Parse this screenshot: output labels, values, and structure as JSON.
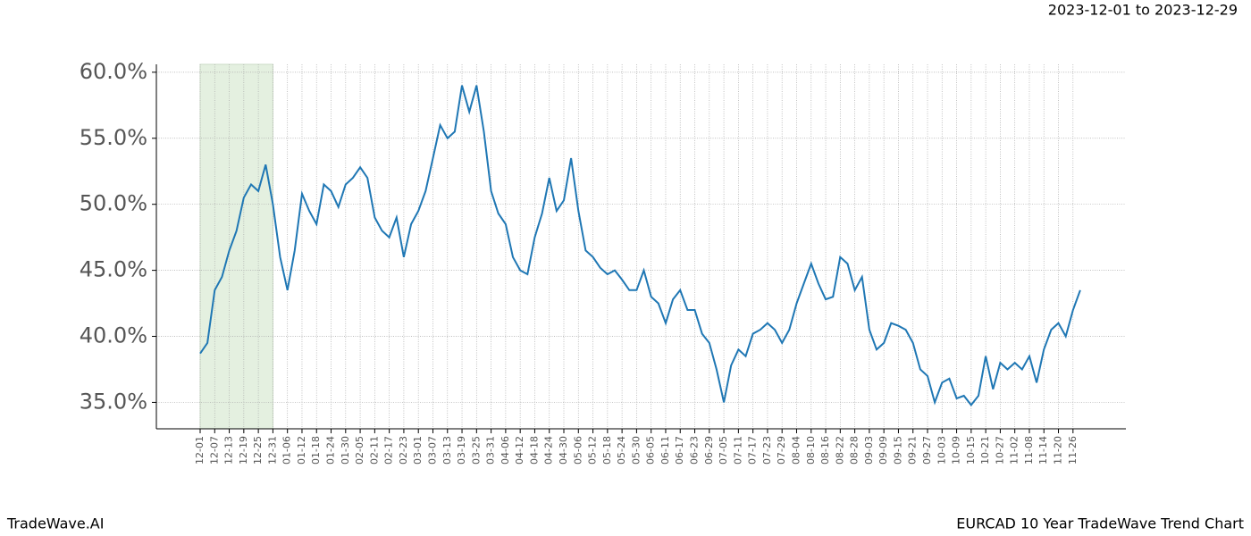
{
  "header": {
    "date_range": "2023-12-01 to 2023-12-29"
  },
  "footer": {
    "brand": "TradeWave.AI",
    "chart_name": "EURCAD 10 Year TradeWave Trend Chart"
  },
  "chart_data": {
    "type": "line",
    "color": "#1f77b4",
    "grid": true,
    "categories": [
      "12-01",
      null,
      "12-07",
      null,
      "12-13",
      null,
      "12-19",
      null,
      "12-25",
      null,
      "12-31",
      null,
      "01-06",
      null,
      "01-12",
      null,
      "01-18",
      null,
      "01-24",
      null,
      "01-30",
      null,
      "02-05",
      null,
      "02-11",
      null,
      "02-17",
      null,
      "02-23",
      null,
      "03-01",
      null,
      "03-07",
      null,
      "03-13",
      null,
      "03-19",
      null,
      "03-25",
      null,
      "03-31",
      null,
      "04-06",
      null,
      "04-12",
      null,
      "04-18",
      null,
      "04-24",
      null,
      "04-30",
      null,
      "05-06",
      null,
      "05-12",
      null,
      "05-18",
      null,
      "05-24",
      null,
      "05-30",
      null,
      "06-05",
      null,
      "06-11",
      null,
      "06-17",
      null,
      "06-23",
      null,
      "06-29",
      null,
      "07-05",
      null,
      "07-11",
      null,
      "07-17",
      null,
      "07-23",
      null,
      "07-29",
      null,
      "08-04",
      null,
      "08-10",
      null,
      "08-16",
      null,
      "08-22",
      null,
      "08-28",
      null,
      "09-03",
      null,
      "09-09",
      null,
      "09-15",
      null,
      "09-21",
      null,
      "09-27",
      null,
      "10-03",
      null,
      "10-09",
      null,
      "10-15",
      null,
      "10-21",
      null,
      "10-27",
      null,
      "11-02",
      null,
      "11-08",
      null,
      "11-14",
      null,
      "11-20",
      null,
      "11-26",
      null
    ],
    "values": [
      38.7,
      39.5,
      43.5,
      44.5,
      46.5,
      48.0,
      50.5,
      51.5,
      51.0,
      53.0,
      50.0,
      46.0,
      43.5,
      46.5,
      50.8,
      49.5,
      48.5,
      51.5,
      51.0,
      49.8,
      51.5,
      52.0,
      52.8,
      52.0,
      49.0,
      48.0,
      47.5,
      49.0,
      46.0,
      48.5,
      49.5,
      51.0,
      53.5,
      56.0,
      55.0,
      55.5,
      59.0,
      57.0,
      59.0,
      55.5,
      51.0,
      49.3,
      48.5,
      46.0,
      45.0,
      44.7,
      47.5,
      49.3,
      52.0,
      49.5,
      50.3,
      53.5,
      49.5,
      46.5,
      46.0,
      45.2,
      44.7,
      45.0,
      44.3,
      43.5,
      43.5,
      45.0,
      43.0,
      42.5,
      41.0,
      42.8,
      43.5,
      42.0,
      42.0,
      40.2,
      39.5,
      37.5,
      35.0,
      37.8,
      39.0,
      38.5,
      40.2,
      40.5,
      41.0,
      40.5,
      39.5,
      40.5,
      42.5,
      44.0,
      45.5,
      44.0,
      42.8,
      43.0,
      46.0,
      45.5,
      43.5,
      44.5,
      40.5,
      39.0,
      39.5,
      41.0,
      40.8,
      40.5,
      39.5,
      37.5,
      37.0,
      35.0,
      36.5,
      36.8,
      35.3,
      35.5,
      34.8,
      35.5,
      38.5,
      36.0,
      38.0,
      37.5,
      38.0,
      37.5,
      38.5,
      36.5,
      39.0,
      40.5,
      41.0,
      40.0,
      42.0,
      43.5
    ],
    "ylim": [
      33,
      60.6
    ],
    "yticks": [
      {
        "value": 35,
        "label": "35.0%"
      },
      {
        "value": 40,
        "label": "40.0%"
      },
      {
        "value": 45,
        "label": "45.0%"
      },
      {
        "value": 50,
        "label": "50.0%"
      },
      {
        "value": 55,
        "label": "55.0%"
      },
      {
        "value": 60,
        "label": "60.0%"
      }
    ]
  }
}
